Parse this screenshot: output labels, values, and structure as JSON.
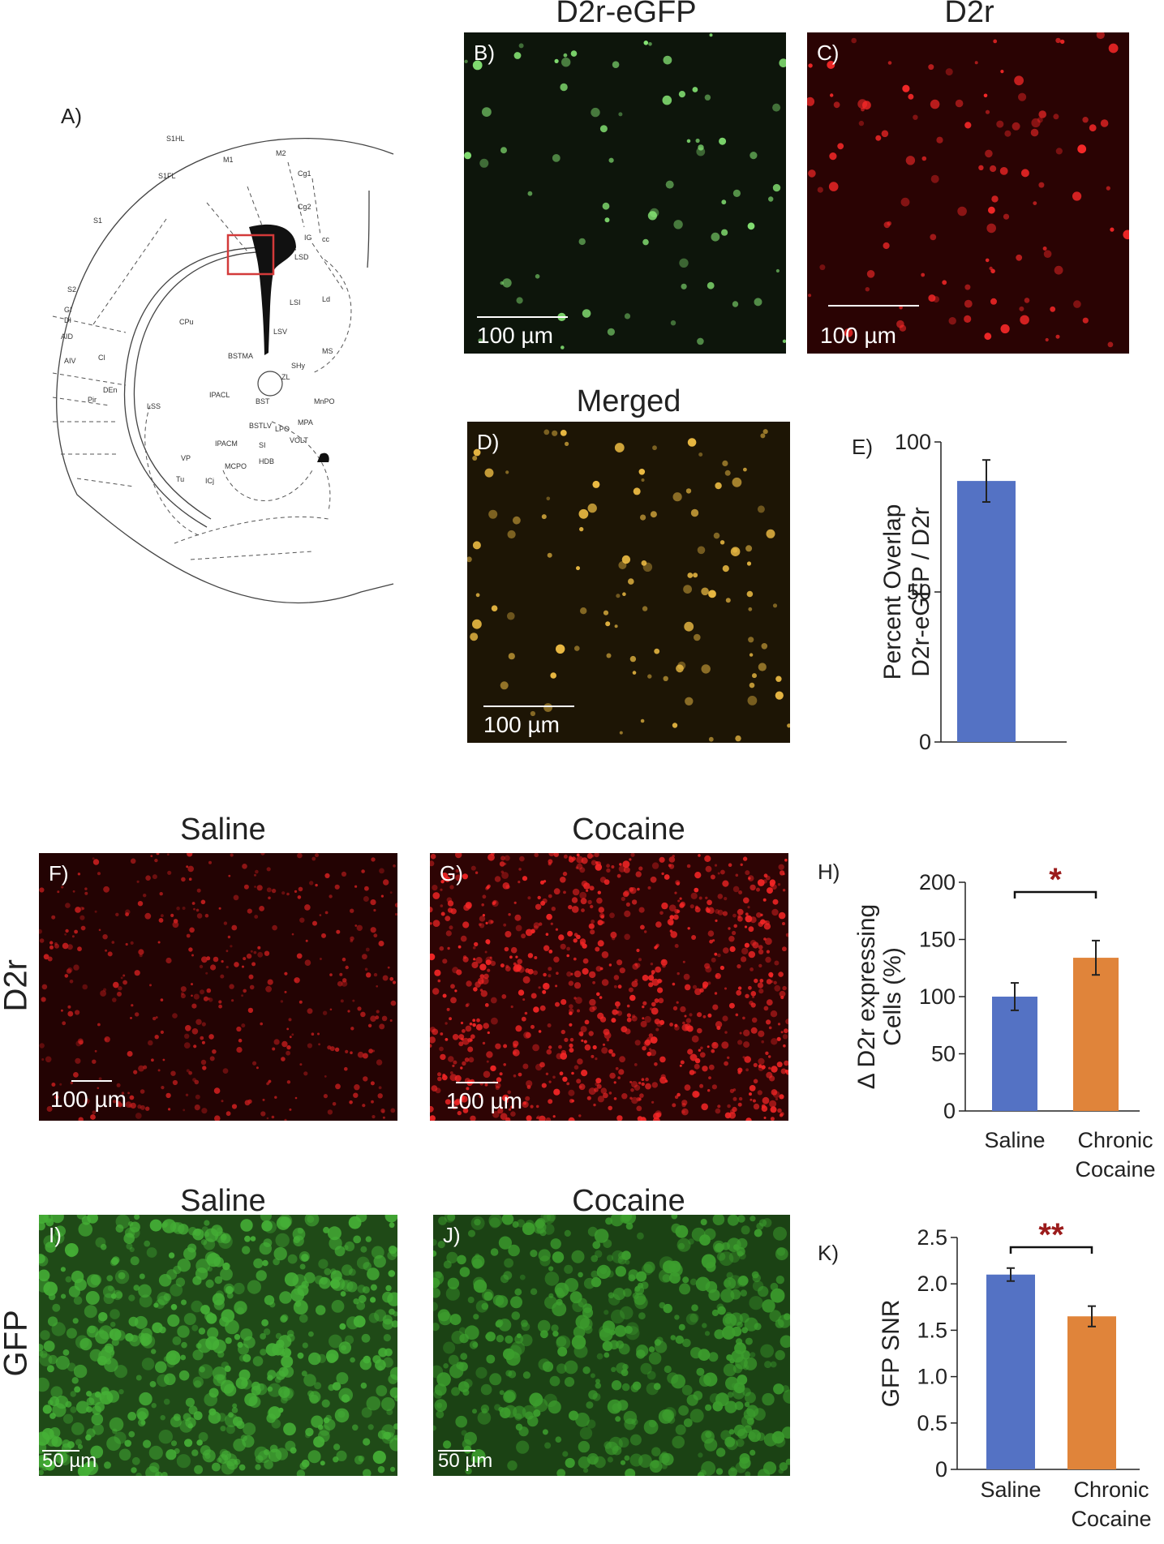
{
  "panels": {
    "A": {
      "label": "A)"
    },
    "B": {
      "label": "B)",
      "title": "D2r-eGFP",
      "scale": "100 µm"
    },
    "C": {
      "label": "C)",
      "title": "D2r",
      "scale": "100 µm"
    },
    "D": {
      "label": "D)",
      "title": "Merged",
      "scale": "100 µm"
    },
    "E": {
      "label": "E)"
    },
    "F": {
      "label": "F)",
      "title": "Saline",
      "scale": "100 µm"
    },
    "G": {
      "label": "G)",
      "title": "Cocaine",
      "scale": "100 µm"
    },
    "H": {
      "label": "H)"
    },
    "I": {
      "label": "I)",
      "title": "Saline",
      "scale": "50 µm"
    },
    "J": {
      "label": "J)",
      "title": "Cocaine",
      "scale": "50 µm"
    },
    "K": {
      "label": "K)"
    }
  },
  "row_labels": {
    "d2r": "D2r",
    "gfp": "GFP"
  },
  "atlas": {
    "regions": [
      "S1HL",
      "M1",
      "M2",
      "S1FL",
      "Cg1",
      "Cg2",
      "S1",
      "IG",
      "cc",
      "LSD",
      "S2",
      "GI",
      "DI",
      "AID",
      "AIV",
      "Cl",
      "CPu",
      "LSI",
      "Ld",
      "LSV",
      "BSTMA",
      "MS",
      "SHy",
      "ZL",
      "DEn",
      "Pir",
      "LSS",
      "IPACL",
      "BST",
      "MnPO",
      "BSTLV",
      "LPO",
      "MPA",
      "IPACM",
      "VOLT",
      "SI",
      "VP",
      "HDB",
      "MCPO",
      "Tu",
      "ICj"
    ]
  },
  "colors": {
    "saline": "#5472C4",
    "cocaine": "#E0843A",
    "significance": "#9B1B1B",
    "green_cells": "#7CE36A",
    "red_cells": "#F0282A",
    "yellow_cells": "#F5C542"
  },
  "chart_data": [
    {
      "type": "bar",
      "panel": "E",
      "categories": [
        ""
      ],
      "values": [
        87
      ],
      "errors": [
        7
      ],
      "ylabel_line1": "Percent Overlap",
      "ylabel_line2": "D2r-eGFP / D2r",
      "ylim": [
        0,
        100
      ],
      "yticks": [
        "0",
        "50",
        "100"
      ]
    },
    {
      "type": "bar",
      "panel": "H",
      "categories": [
        "Saline",
        "Chronic Cocaine"
      ],
      "category_lines": [
        [
          "Saline"
        ],
        [
          "Chronic",
          "Cocaine"
        ]
      ],
      "values": [
        100,
        134
      ],
      "errors": [
        12,
        15
      ],
      "ylabel_line1": "Δ D2r expressing",
      "ylabel_line2": "Cells (%)",
      "ylim": [
        0,
        200
      ],
      "yticks": [
        "0",
        "50",
        "100",
        "150",
        "200"
      ],
      "significance": "*"
    },
    {
      "type": "bar",
      "panel": "K",
      "categories": [
        "Saline",
        "Chronic Cocaine"
      ],
      "category_lines": [
        [
          "Saline"
        ],
        [
          "Chronic",
          "Cocaine"
        ]
      ],
      "values": [
        2.1,
        1.65
      ],
      "errors": [
        0.07,
        0.11
      ],
      "ylabel_line1": "GFP SNR",
      "ylim": [
        0,
        2.5
      ],
      "yticks": [
        "0",
        "0.5",
        "1.0",
        "1.5",
        "2.0",
        "2.5"
      ],
      "significance": "**"
    }
  ]
}
